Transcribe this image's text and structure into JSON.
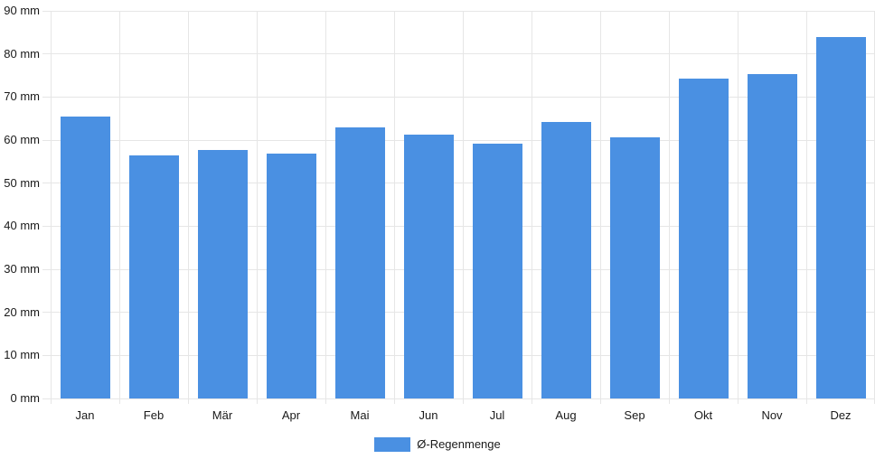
{
  "chart_data": {
    "type": "bar",
    "title": "",
    "xlabel": "",
    "ylabel": "",
    "unit": "mm",
    "categories": [
      "Jan",
      "Feb",
      "Mär",
      "Apr",
      "Mai",
      "Jun",
      "Jul",
      "Aug",
      "Sep",
      "Okt",
      "Nov",
      "Dez"
    ],
    "series": [
      {
        "name": "Ø-Regenmenge",
        "values": [
          65.5,
          56.4,
          57.6,
          56.8,
          62.9,
          61.2,
          59.1,
          64.3,
          60.6,
          74.2,
          75.4,
          84.0
        ]
      }
    ],
    "ylim": [
      0,
      90
    ],
    "y_tick_step": 10,
    "y_tick_labels": [
      "0 mm",
      "10 mm",
      "20 mm",
      "30 mm",
      "40 mm",
      "50 mm",
      "60 mm",
      "70 mm",
      "80 mm",
      "90 mm"
    ],
    "grid": true,
    "legend_position": "bottom"
  },
  "legend": {
    "label": "Ø-Regenmenge"
  },
  "colors": {
    "bar": "#4a90e2",
    "grid": "#e6e6e6",
    "text": "#1a1a1a",
    "background": "#ffffff"
  }
}
